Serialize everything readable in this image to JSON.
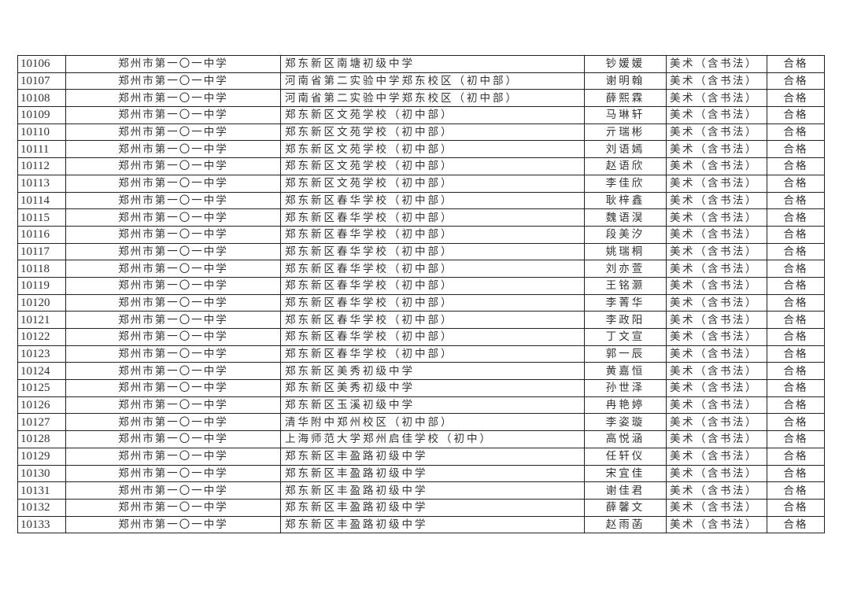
{
  "table": {
    "rows": [
      [
        "10106",
        "郑州市第一〇一中学",
        "郑东新区南塘初级中学",
        "钞媛媛",
        "美术（含书法）",
        "合格"
      ],
      [
        "10107",
        "郑州市第一〇一中学",
        "河南省第二实验中学郑东校区（初中部）",
        "谢明翰",
        "美术（含书法）",
        "合格"
      ],
      [
        "10108",
        "郑州市第一〇一中学",
        "河南省第二实验中学郑东校区（初中部）",
        "薛熙霖",
        "美术（含书法）",
        "合格"
      ],
      [
        "10109",
        "郑州市第一〇一中学",
        "郑东新区文苑学校（初中部）",
        "马琳轩",
        "美术（含书法）",
        "合格"
      ],
      [
        "10110",
        "郑州市第一〇一中学",
        "郑东新区文苑学校（初中部）",
        "亓瑞彬",
        "美术（含书法）",
        "合格"
      ],
      [
        "10111",
        "郑州市第一〇一中学",
        "郑东新区文苑学校（初中部）",
        "刘语嫣",
        "美术（含书法）",
        "合格"
      ],
      [
        "10112",
        "郑州市第一〇一中学",
        "郑东新区文苑学校（初中部）",
        "赵语欣",
        "美术（含书法）",
        "合格"
      ],
      [
        "10113",
        "郑州市第一〇一中学",
        "郑东新区文苑学校（初中部）",
        "李佳欣",
        "美术（含书法）",
        "合格"
      ],
      [
        "10114",
        "郑州市第一〇一中学",
        "郑东新区春华学校（初中部）",
        "耿梓鑫",
        "美术（含书法）",
        "合格"
      ],
      [
        "10115",
        "郑州市第一〇一中学",
        "郑东新区春华学校（初中部）",
        "魏语淏",
        "美术（含书法）",
        "合格"
      ],
      [
        "10116",
        "郑州市第一〇一中学",
        "郑东新区春华学校（初中部）",
        "段美汐",
        "美术（含书法）",
        "合格"
      ],
      [
        "10117",
        "郑州市第一〇一中学",
        "郑东新区春华学校（初中部）",
        "姚瑞桐",
        "美术（含书法）",
        "合格"
      ],
      [
        "10118",
        "郑州市第一〇一中学",
        "郑东新区春华学校（初中部）",
        "刘亦萱",
        "美术（含书法）",
        "合格"
      ],
      [
        "10119",
        "郑州市第一〇一中学",
        "郑东新区春华学校（初中部）",
        "王铭灏",
        "美术（含书法）",
        "合格"
      ],
      [
        "10120",
        "郑州市第一〇一中学",
        "郑东新区春华学校（初中部）",
        "李菁华",
        "美术（含书法）",
        "合格"
      ],
      [
        "10121",
        "郑州市第一〇一中学",
        "郑东新区春华学校（初中部）",
        "李政阳",
        "美术（含书法）",
        "合格"
      ],
      [
        "10122",
        "郑州市第一〇一中学",
        "郑东新区春华学校（初中部）",
        "丁文宣",
        "美术（含书法）",
        "合格"
      ],
      [
        "10123",
        "郑州市第一〇一中学",
        "郑东新区春华学校（初中部）",
        "郭一辰",
        "美术（含书法）",
        "合格"
      ],
      [
        "10124",
        "郑州市第一〇一中学",
        "郑东新区美秀初级中学",
        "黄嘉恒",
        "美术（含书法）",
        "合格"
      ],
      [
        "10125",
        "郑州市第一〇一中学",
        "郑东新区美秀初级中学",
        "孙世泽",
        "美术（含书法）",
        "合格"
      ],
      [
        "10126",
        "郑州市第一〇一中学",
        "郑东新区玉溪初级中学",
        "冉艳婷",
        "美术（含书法）",
        "合格"
      ],
      [
        "10127",
        "郑州市第一〇一中学",
        "清华附中郑州校区（初中部）",
        "李姿璇",
        "美术（含书法）",
        "合格"
      ],
      [
        "10128",
        "郑州市第一〇一中学",
        "上海师范大学郑州启佳学校（初中）",
        "高悦涵",
        "美术（含书法）",
        "合格"
      ],
      [
        "10129",
        "郑州市第一〇一中学",
        "郑东新区丰盈路初级中学",
        "任轩仪",
        "美术（含书法）",
        "合格"
      ],
      [
        "10130",
        "郑州市第一〇一中学",
        "郑东新区丰盈路初级中学",
        "宋宜佳",
        "美术（含书法）",
        "合格"
      ],
      [
        "10131",
        "郑州市第一〇一中学",
        "郑东新区丰盈路初级中学",
        "谢佳君",
        "美术（含书法）",
        "合格"
      ],
      [
        "10132",
        "郑州市第一〇一中学",
        "郑东新区丰盈路初级中学",
        "薛馨文",
        "美术（含书法）",
        "合格"
      ],
      [
        "10133",
        "郑州市第一〇一中学",
        "郑东新区丰盈路初级中学",
        "赵雨菡",
        "美术（含书法）",
        "合格"
      ]
    ]
  }
}
